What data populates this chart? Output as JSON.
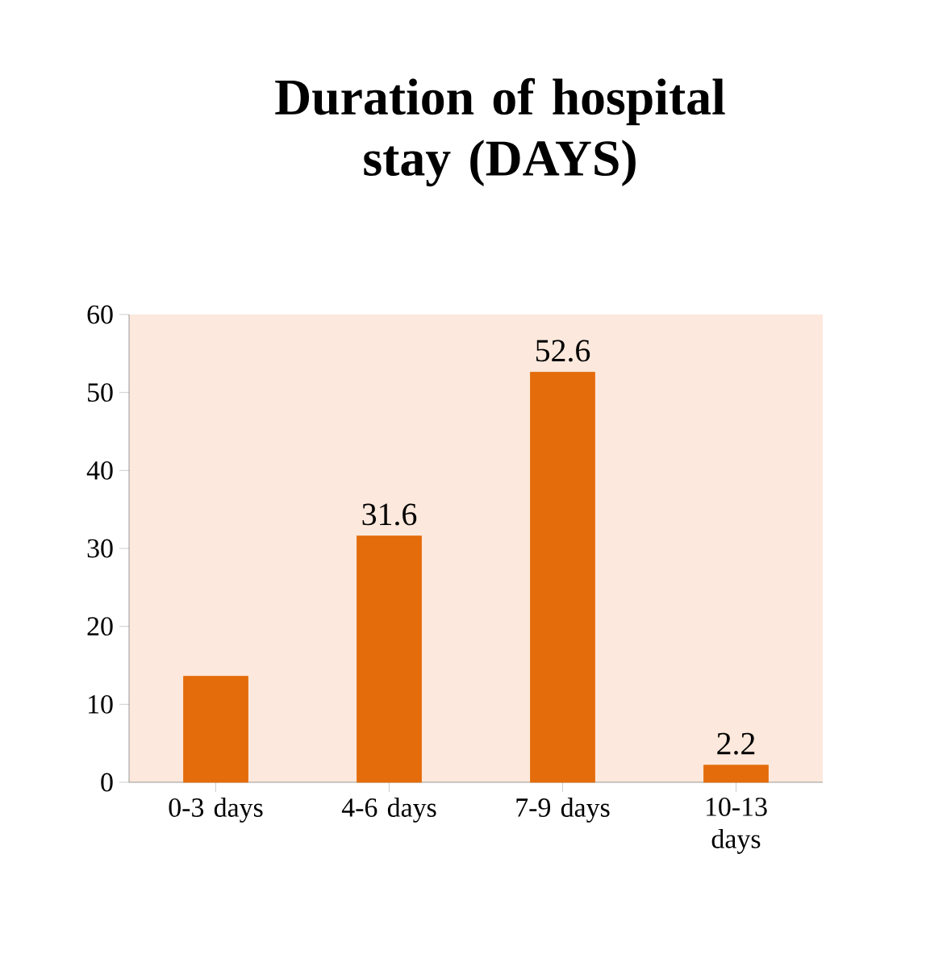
{
  "chart_data": {
    "type": "bar",
    "title": "Duration of hospital stay (DAYS)",
    "categories": [
      "0-3 days",
      "4-6 days",
      "7-9 days",
      "10-13 days"
    ],
    "values": [
      13.6,
      31.6,
      52.6,
      2.2
    ],
    "value_labels": [
      null,
      "31.6",
      "52.6",
      "2.2"
    ],
    "color": "#e46c0a",
    "ylim": [
      0,
      60
    ],
    "yticks": [
      0,
      10,
      20,
      30,
      40,
      50,
      60
    ],
    "grid": false
  }
}
